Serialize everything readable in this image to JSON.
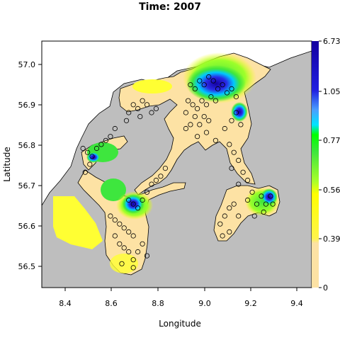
{
  "title": "Time: 2007",
  "xlabel": "Longitude",
  "ylabel": "Latitude",
  "x_ticks": [
    "8.4",
    "8.6",
    "8.8",
    "9.0",
    "9.2",
    "9.4"
  ],
  "y_ticks": [
    "57.0",
    "56.9",
    "56.8",
    "56.7",
    "56.6",
    "56.5"
  ],
  "colorbar_labels": [
    "6.73",
    "1.05",
    "0.77",
    "0.56",
    "0.39",
    "0"
  ],
  "colors": {
    "land": "#bebebe",
    "low": "#fde2a4",
    "yellow": "#ffff00",
    "green": "#3ee63e",
    "cyan": "#00e5ff",
    "blue": "#2020e0",
    "dark_blue": "#1400a0"
  },
  "chart_data": {
    "type": "heatmap",
    "title": "Time: 2007",
    "xlabel": "Longitude",
    "ylabel": "Latitude",
    "xlim": [
      8.3,
      9.48
    ],
    "ylim": [
      56.44,
      57.06
    ],
    "colorbar_ticks": [
      6.73,
      1.05,
      0.77,
      0.56,
      0.39,
      0
    ],
    "samples_lonlat": [
      [
        8.68,
        56.88
      ],
      [
        8.7,
        56.9
      ],
      [
        8.72,
        56.89
      ],
      [
        8.74,
        56.91
      ],
      [
        8.76,
        56.9
      ],
      [
        8.78,
        56.88
      ],
      [
        8.8,
        56.89
      ],
      [
        8.73,
        56.87
      ],
      [
        8.67,
        56.86
      ],
      [
        8.95,
        56.95
      ],
      [
        8.97,
        56.94
      ],
      [
        8.99,
        56.96
      ],
      [
        9.01,
        56.95
      ],
      [
        9.03,
        56.97
      ],
      [
        9.05,
        56.96
      ],
      [
        9.07,
        56.94
      ],
      [
        9.09,
        56.95
      ],
      [
        9.11,
        56.93
      ],
      [
        9.13,
        56.94
      ],
      [
        9.15,
        56.92
      ],
      [
        8.94,
        56.91
      ],
      [
        8.96,
        56.9
      ],
      [
        8.98,
        56.89
      ],
      [
        9.0,
        56.91
      ],
      [
        9.02,
        56.9
      ],
      [
        9.04,
        56.92
      ],
      [
        9.06,
        56.91
      ],
      [
        8.93,
        56.88
      ],
      [
        8.97,
        56.87
      ],
      [
        9.01,
        56.87
      ],
      [
        8.95,
        56.85
      ],
      [
        8.99,
        56.85
      ],
      [
        9.03,
        56.86
      ],
      [
        8.93,
        56.84
      ],
      [
        8.98,
        56.82
      ],
      [
        9.02,
        56.83
      ],
      [
        9.06,
        56.81
      ],
      [
        9.1,
        56.84
      ],
      [
        9.13,
        56.86
      ],
      [
        9.15,
        56.88
      ],
      [
        9.17,
        56.85
      ],
      [
        9.12,
        56.8
      ],
      [
        9.14,
        56.78
      ],
      [
        9.16,
        56.76
      ],
      [
        9.13,
        56.74
      ],
      [
        9.18,
        56.73
      ],
      [
        9.2,
        56.71
      ],
      [
        9.16,
        56.7
      ],
      [
        8.48,
        56.79
      ],
      [
        8.5,
        56.78
      ],
      [
        8.52,
        56.77
      ],
      [
        8.54,
        56.79
      ],
      [
        8.56,
        56.8
      ],
      [
        8.58,
        56.81
      ],
      [
        8.6,
        56.82
      ],
      [
        8.62,
        56.84
      ],
      [
        8.51,
        56.75
      ],
      [
        8.49,
        56.73
      ],
      [
        8.68,
        56.66
      ],
      [
        8.7,
        56.65
      ],
      [
        8.72,
        56.64
      ],
      [
        8.74,
        56.66
      ],
      [
        8.76,
        56.68
      ],
      [
        8.78,
        56.7
      ],
      [
        8.8,
        56.71
      ],
      [
        8.82,
        56.72
      ],
      [
        8.84,
        56.74
      ],
      [
        8.6,
        56.62
      ],
      [
        8.62,
        56.61
      ],
      [
        8.64,
        56.6
      ],
      [
        8.66,
        56.59
      ],
      [
        8.68,
        56.58
      ],
      [
        8.7,
        56.57
      ],
      [
        8.62,
        56.57
      ],
      [
        8.64,
        56.55
      ],
      [
        8.66,
        56.54
      ],
      [
        8.68,
        56.53
      ],
      [
        8.7,
        56.51
      ],
      [
        8.72,
        56.53
      ],
      [
        8.74,
        56.55
      ],
      [
        8.76,
        56.52
      ],
      [
        8.65,
        56.5
      ],
      [
        8.7,
        56.49
      ],
      [
        9.08,
        56.6
      ],
      [
        9.1,
        56.62
      ],
      [
        9.12,
        56.64
      ],
      [
        9.14,
        56.65
      ],
      [
        9.16,
        56.62
      ],
      [
        9.09,
        56.57
      ],
      [
        9.12,
        56.58
      ],
      [
        9.2,
        56.66
      ],
      [
        9.22,
        56.68
      ],
      [
        9.24,
        56.65
      ],
      [
        9.26,
        56.67
      ],
      [
        9.28,
        56.65
      ],
      [
        9.3,
        56.67
      ],
      [
        9.31,
        56.65
      ],
      [
        9.27,
        56.63
      ],
      [
        9.23,
        56.62
      ]
    ]
  }
}
